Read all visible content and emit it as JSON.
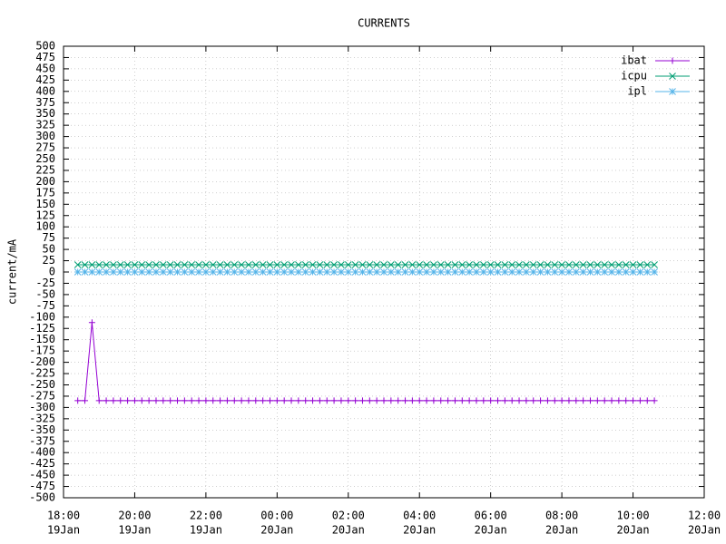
{
  "chart_data": {
    "type": "line",
    "title": "CURRENTS",
    "y_label": "current/mA",
    "x": [
      "19Jan 18:24",
      "19Jan 18:36",
      "19Jan 18:48",
      "19Jan 19:00",
      "19Jan 19:12",
      "19Jan 19:24",
      "19Jan 19:36",
      "19Jan 19:48",
      "19Jan 20:00",
      "19Jan 20:12",
      "19Jan 20:24",
      "19Jan 20:36",
      "19Jan 20:48",
      "19Jan 21:00",
      "19Jan 21:12",
      "19Jan 21:24",
      "19Jan 21:36",
      "19Jan 21:48",
      "19Jan 22:00",
      "19Jan 22:12",
      "19Jan 22:24",
      "19Jan 22:36",
      "19Jan 22:48",
      "19Jan 23:00",
      "19Jan 23:12",
      "19Jan 23:24",
      "19Jan 23:36",
      "19Jan 23:48",
      "20Jan 00:00",
      "20Jan 00:12",
      "20Jan 00:24",
      "20Jan 00:36",
      "20Jan 00:48",
      "20Jan 01:00",
      "20Jan 01:12",
      "20Jan 01:24",
      "20Jan 01:36",
      "20Jan 01:48",
      "20Jan 02:00",
      "20Jan 02:12",
      "20Jan 02:24",
      "20Jan 02:36",
      "20Jan 02:48",
      "20Jan 03:00",
      "20Jan 03:12",
      "20Jan 03:24",
      "20Jan 03:36",
      "20Jan 03:48",
      "20Jan 04:00",
      "20Jan 04:12",
      "20Jan 04:24",
      "20Jan 04:36",
      "20Jan 04:48",
      "20Jan 05:00",
      "20Jan 05:12",
      "20Jan 05:24",
      "20Jan 05:36",
      "20Jan 05:48",
      "20Jan 06:00",
      "20Jan 06:12",
      "20Jan 06:24",
      "20Jan 06:36",
      "20Jan 06:48",
      "20Jan 07:00",
      "20Jan 07:12",
      "20Jan 07:24",
      "20Jan 07:36",
      "20Jan 07:48",
      "20Jan 08:00",
      "20Jan 08:12",
      "20Jan 08:24",
      "20Jan 08:36",
      "20Jan 08:48",
      "20Jan 09:00",
      "20Jan 09:12",
      "20Jan 09:24",
      "20Jan 09:36",
      "20Jan 09:48",
      "20Jan 10:00",
      "20Jan 10:12",
      "20Jan 10:24",
      "20Jan 10:36"
    ],
    "series": [
      {
        "name": "ibat",
        "color": "#9400d3",
        "marker": "plus",
        "values": [
          -285,
          -285,
          -112,
          -285,
          -285,
          -285,
          -285,
          -285,
          -285,
          -285,
          -285,
          -285,
          -285,
          -285,
          -285,
          -285,
          -285,
          -285,
          -285,
          -285,
          -285,
          -285,
          -285,
          -285,
          -285,
          -285,
          -285,
          -285,
          -285,
          -285,
          -285,
          -285,
          -285,
          -285,
          -285,
          -285,
          -285,
          -285,
          -285,
          -285,
          -285,
          -285,
          -285,
          -285,
          -285,
          -285,
          -285,
          -285,
          -285,
          -285,
          -285,
          -285,
          -285,
          -285,
          -285,
          -285,
          -285,
          -285,
          -285,
          -285,
          -285,
          -285,
          -285,
          -285,
          -285,
          -285,
          -285,
          -285,
          -285,
          -285,
          -285,
          -285,
          -285,
          -285,
          -285,
          -285,
          -285,
          -285,
          -285,
          -285,
          -285,
          -285
        ]
      },
      {
        "name": "icpu",
        "color": "#009e73",
        "marker": "cross",
        "values": [
          16,
          16,
          16,
          16,
          16,
          16,
          16,
          16,
          16,
          16,
          16,
          16,
          16,
          16,
          16,
          16,
          16,
          16,
          16,
          16,
          16,
          16,
          16,
          16,
          16,
          16,
          16,
          16,
          16,
          16,
          16,
          16,
          16,
          16,
          16,
          16,
          16,
          16,
          16,
          16,
          16,
          16,
          16,
          16,
          16,
          16,
          16,
          16,
          16,
          16,
          16,
          16,
          16,
          16,
          16,
          16,
          16,
          16,
          16,
          16,
          16,
          16,
          16,
          16,
          16,
          16,
          16,
          16,
          16,
          16,
          16,
          16,
          16,
          16,
          16,
          16,
          16,
          16,
          16,
          16,
          16,
          16
        ]
      },
      {
        "name": "ipl",
        "color": "#56b4e9",
        "marker": "star",
        "values": [
          0,
          0,
          0,
          0,
          0,
          0,
          0,
          0,
          0,
          0,
          0,
          0,
          0,
          0,
          0,
          0,
          0,
          0,
          0,
          0,
          0,
          0,
          0,
          0,
          0,
          0,
          0,
          0,
          0,
          0,
          0,
          0,
          0,
          0,
          0,
          0,
          0,
          0,
          0,
          0,
          0,
          0,
          0,
          0,
          0,
          0,
          0,
          0,
          0,
          0,
          0,
          0,
          0,
          0,
          0,
          0,
          0,
          0,
          0,
          0,
          0,
          0,
          0,
          0,
          0,
          0,
          0,
          0,
          0,
          0,
          0,
          0,
          0,
          0,
          0,
          0,
          0,
          0,
          0,
          0,
          0,
          0
        ]
      }
    ],
    "xlim": [
      "19Jan 18:00",
      "20Jan 12:00"
    ],
    "xticks": [
      {
        "value": "19Jan 18:00",
        "label": [
          "18:00",
          "19Jan"
        ]
      },
      {
        "value": "19Jan 20:00",
        "label": [
          "20:00",
          "19Jan"
        ]
      },
      {
        "value": "19Jan 22:00",
        "label": [
          "22:00",
          "19Jan"
        ]
      },
      {
        "value": "20Jan 00:00",
        "label": [
          "00:00",
          "20Jan"
        ]
      },
      {
        "value": "20Jan 02:00",
        "label": [
          "02:00",
          "20Jan"
        ]
      },
      {
        "value": "20Jan 04:00",
        "label": [
          "04:00",
          "20Jan"
        ]
      },
      {
        "value": "20Jan 06:00",
        "label": [
          "06:00",
          "20Jan"
        ]
      },
      {
        "value": "20Jan 08:00",
        "label": [
          "08:00",
          "20Jan"
        ]
      },
      {
        "value": "20Jan 10:00",
        "label": [
          "10:00",
          "20Jan"
        ]
      },
      {
        "value": "20Jan 12:00",
        "label": [
          "12:00",
          "20Jan"
        ]
      }
    ],
    "ylim": [
      -500,
      500
    ],
    "yticks": [
      -500,
      -475,
      -450,
      -425,
      -400,
      -375,
      -350,
      -325,
      -300,
      -275,
      -250,
      -225,
      -200,
      -175,
      -150,
      -125,
      -100,
      -75,
      -50,
      -25,
      0,
      25,
      50,
      75,
      100,
      125,
      150,
      175,
      200,
      225,
      250,
      275,
      300,
      325,
      350,
      375,
      400,
      425,
      450,
      475,
      500
    ],
    "grid": true,
    "legend": "top-right"
  }
}
